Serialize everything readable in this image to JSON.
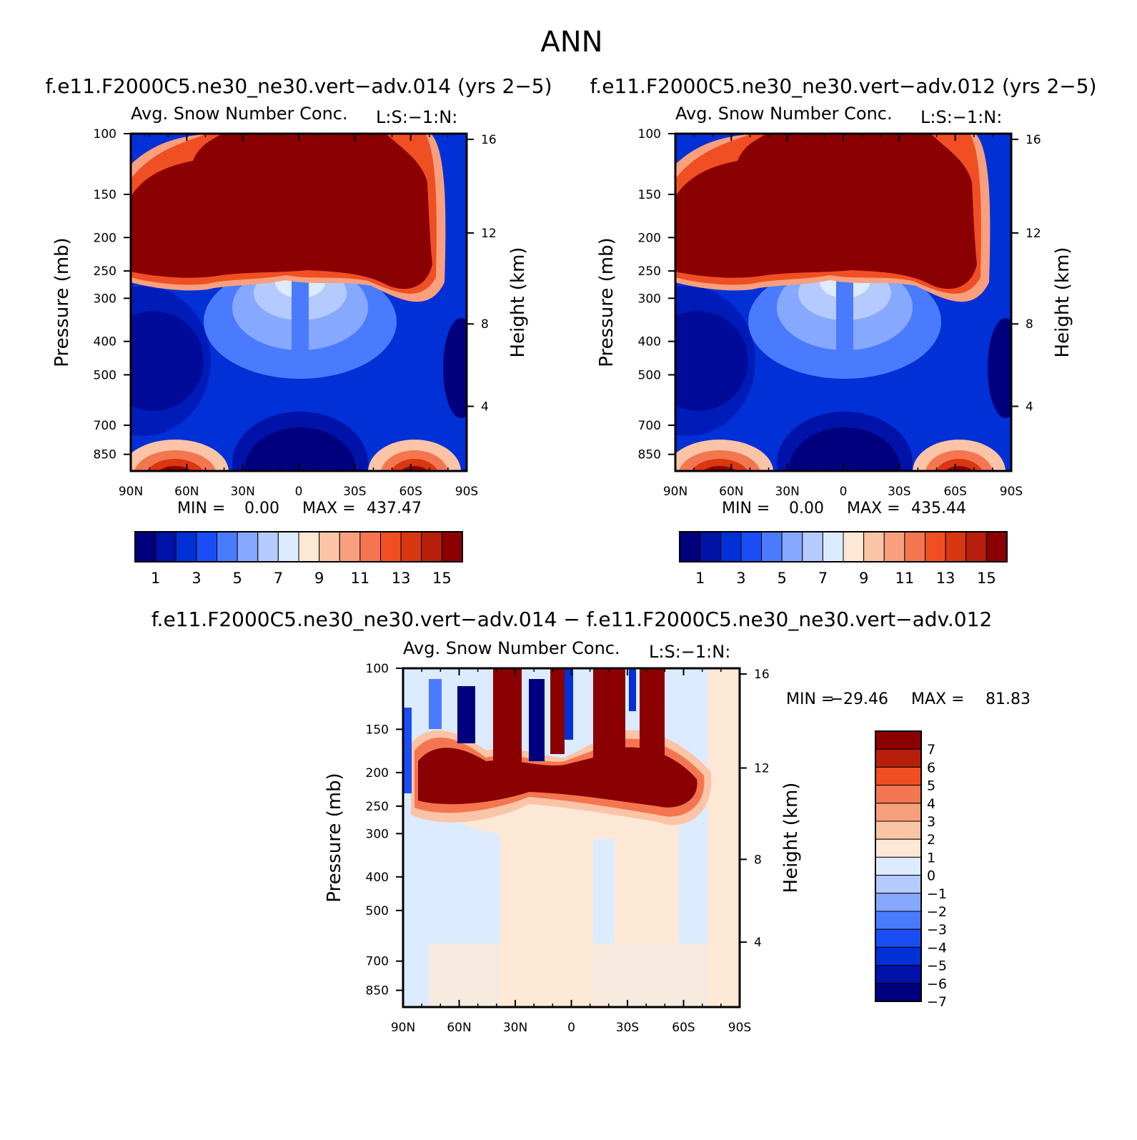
{
  "page": {
    "title": "ANN",
    "panel1_subtitle": "f.e11.F2000C5.ne30_ne30.vert−adv.014 (yrs 2−5)",
    "panel2_subtitle": "f.e11.F2000C5.ne30_ne30.vert−adv.012 (yrs 2−5)",
    "panel3_subtitle": "f.e11.F2000C5.ne30_ne30.vert−adv.014 − f.e11.F2000C5.ne30_ne30.vert−adv.012"
  },
  "chart_data": [
    {
      "type": "heatmap",
      "title": "Avg. Snow Number Conc.",
      "units_note": "L:S:−1:N:",
      "ylabel": "Pressure (mb)",
      "y2label": "Height (km)",
      "x_tick_labels": [
        "90N",
        "60N",
        "30N",
        "0",
        "30S",
        "60S",
        "90S"
      ],
      "x_tick_values": [
        90,
        60,
        30,
        0,
        -30,
        -60,
        -90
      ],
      "y_tick_labels": [
        "100",
        "150",
        "200",
        "250",
        "300",
        "400",
        "500",
        "700",
        "850"
      ],
      "y2_tick_labels": [
        "16",
        "12",
        "8",
        "4"
      ],
      "ylim": [
        100,
        950
      ],
      "y_scale": "log",
      "stats": {
        "min_label": "MIN =",
        "min_value": "0.00",
        "max_label": "MAX =",
        "max_value": "437.47"
      },
      "colorbar": {
        "orientation": "horizontal",
        "labels": [
          "1",
          "3",
          "5",
          "7",
          "9",
          "11",
          "13",
          "15"
        ],
        "colors": [
          "#00007f",
          "#0012a8",
          "#0030d6",
          "#1a4df5",
          "#4a7bff",
          "#86a8ff",
          "#b5cbff",
          "#dcebff",
          "#fde8d6",
          "#fcc4a6",
          "#f8a07e",
          "#f47650",
          "#f04f24",
          "#d93710",
          "#b71f0a",
          "#8b0000"
        ]
      }
    },
    {
      "type": "heatmap",
      "title": "Avg. Snow Number Conc.",
      "units_note": "L:S:−1:N:",
      "ylabel": "Pressure (mb)",
      "y2label": "Height (km)",
      "x_tick_labels": [
        "90N",
        "60N",
        "30N",
        "0",
        "30S",
        "60S",
        "90S"
      ],
      "x_tick_values": [
        90,
        60,
        30,
        0,
        -30,
        -60,
        -90
      ],
      "y_tick_labels": [
        "100",
        "150",
        "200",
        "250",
        "300",
        "400",
        "500",
        "700",
        "850"
      ],
      "y2_tick_labels": [
        "16",
        "12",
        "8",
        "4"
      ],
      "ylim": [
        100,
        950
      ],
      "y_scale": "log",
      "stats": {
        "min_label": "MIN =",
        "min_value": "0.00",
        "max_label": "MAX =",
        "max_value": "435.44"
      },
      "colorbar": {
        "orientation": "horizontal",
        "labels": [
          "1",
          "3",
          "5",
          "7",
          "9",
          "11",
          "13",
          "15"
        ],
        "colors": [
          "#00007f",
          "#0012a8",
          "#0030d6",
          "#1a4df5",
          "#4a7bff",
          "#86a8ff",
          "#b5cbff",
          "#dcebff",
          "#fde8d6",
          "#fcc4a6",
          "#f8a07e",
          "#f47650",
          "#f04f24",
          "#d93710",
          "#b71f0a",
          "#8b0000"
        ]
      }
    },
    {
      "type": "heatmap",
      "title": "Avg. Snow Number Conc.",
      "units_note": "L:S:−1:N:",
      "ylabel": "Pressure (mb)",
      "y2label": "Height (km)",
      "x_tick_labels": [
        "90N",
        "60N",
        "30N",
        "0",
        "30S",
        "60S",
        "90S"
      ],
      "x_tick_values": [
        90,
        60,
        30,
        0,
        -30,
        -60,
        -90
      ],
      "y_tick_labels": [
        "100",
        "150",
        "200",
        "250",
        "300",
        "400",
        "500",
        "700",
        "850"
      ],
      "y2_tick_labels": [
        "16",
        "12",
        "8",
        "4"
      ],
      "ylim": [
        100,
        950
      ],
      "y_scale": "log",
      "stats": {
        "min_label": "MIN =",
        "min_value": "−29.46",
        "max_label": "MAX =",
        "max_value": "81.83"
      },
      "colorbar": {
        "orientation": "vertical",
        "labels": [
          "7",
          "6",
          "5",
          "4",
          "3",
          "2",
          "1",
          "0",
          "−1",
          "−2",
          "−3",
          "−4",
          "−5",
          "−6",
          "−7"
        ],
        "colors": [
          "#8b0000",
          "#b71f0a",
          "#f04f24",
          "#f47650",
          "#f8a07e",
          "#fcc4a6",
          "#fde8d6",
          "#dcebff",
          "#b5cbff",
          "#86a8ff",
          "#4a7bff",
          "#1a4df5",
          "#0030d6",
          "#0012a8",
          "#00007f"
        ]
      }
    }
  ]
}
